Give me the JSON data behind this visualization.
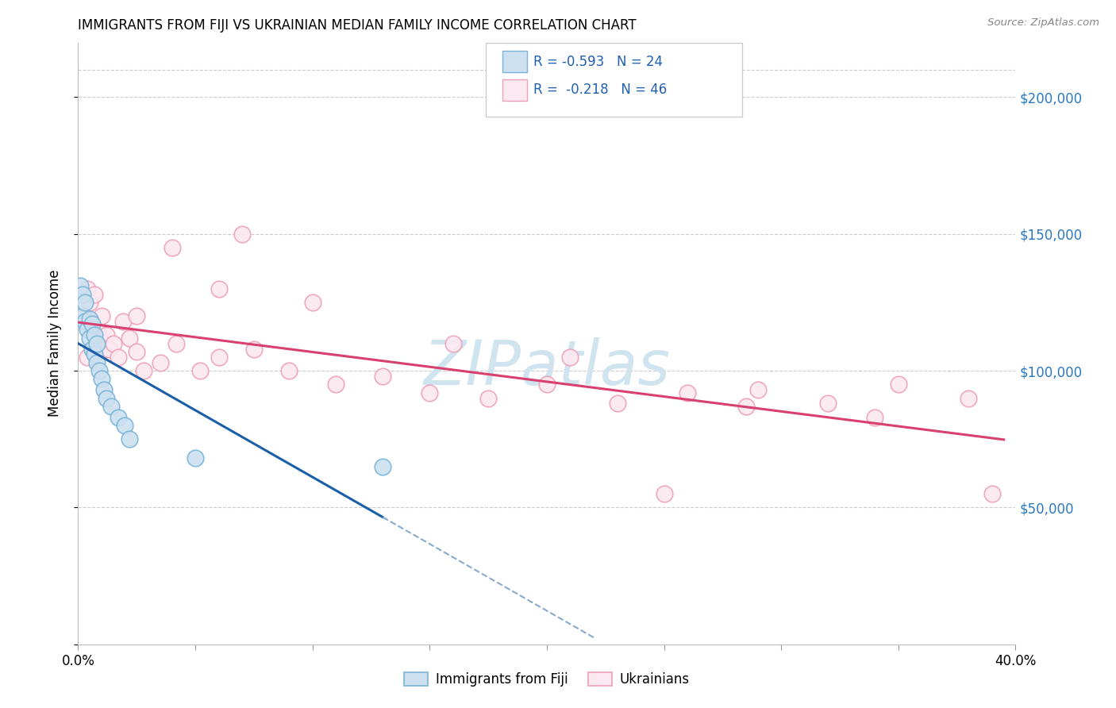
{
  "title": "IMMIGRANTS FROM FIJI VS UKRAINIAN MEDIAN FAMILY INCOME CORRELATION CHART",
  "source": "Source: ZipAtlas.com",
  "xlim": [
    0.0,
    0.4
  ],
  "ylim": [
    0,
    220000
  ],
  "fiji_x": [
    0.001,
    0.002,
    0.002,
    0.003,
    0.003,
    0.004,
    0.005,
    0.005,
    0.006,
    0.006,
    0.007,
    0.007,
    0.008,
    0.008,
    0.009,
    0.01,
    0.011,
    0.012,
    0.014,
    0.017,
    0.02,
    0.022,
    0.05,
    0.13
  ],
  "fiji_y": [
    131000,
    128000,
    120000,
    125000,
    118000,
    115000,
    112000,
    119000,
    117000,
    108000,
    113000,
    106000,
    103000,
    110000,
    100000,
    97000,
    93000,
    90000,
    87000,
    83000,
    80000,
    75000,
    68000,
    65000
  ],
  "ukraine_x": [
    0.003,
    0.004,
    0.004,
    0.005,
    0.006,
    0.007,
    0.008,
    0.009,
    0.01,
    0.011,
    0.012,
    0.013,
    0.015,
    0.017,
    0.019,
    0.022,
    0.025,
    0.028,
    0.035,
    0.042,
    0.052,
    0.06,
    0.075,
    0.09,
    0.11,
    0.13,
    0.15,
    0.175,
    0.2,
    0.23,
    0.26,
    0.29,
    0.32,
    0.35,
    0.38,
    0.04,
    0.07,
    0.16,
    0.21,
    0.285,
    0.025,
    0.06,
    0.1,
    0.25,
    0.39,
    0.34
  ],
  "ukraine_y": [
    120000,
    130000,
    105000,
    125000,
    118000,
    128000,
    115000,
    112000,
    120000,
    108000,
    113000,
    108000,
    110000,
    105000,
    118000,
    112000,
    107000,
    100000,
    103000,
    110000,
    100000,
    105000,
    108000,
    100000,
    95000,
    98000,
    92000,
    90000,
    95000,
    88000,
    92000,
    93000,
    88000,
    95000,
    90000,
    145000,
    150000,
    110000,
    105000,
    87000,
    120000,
    130000,
    125000,
    55000,
    55000,
    83000
  ],
  "fiji_color": "#7ab4d8",
  "fiji_fill": "#cce0f0",
  "ukraine_color": "#f0a0b8",
  "ukraine_fill": "#fce8f0",
  "fiji_R": -0.593,
  "fiji_N": 24,
  "ukraine_R": -0.218,
  "ukraine_N": 46,
  "regression_fiji_solid_color": "#1a5fa8",
  "regression_fiji_dashed_color": "#88aacc",
  "regression_ukraine_color": "#d84070",
  "watermark": "ZIPatlas",
  "watermark_color": "#d0e4f0",
  "fiji_line_end_x": 0.13,
  "fiji_line_dash_end_x": 0.22,
  "ukraine_line_start_x": 0.0,
  "ukraine_line_end_x": 0.395
}
